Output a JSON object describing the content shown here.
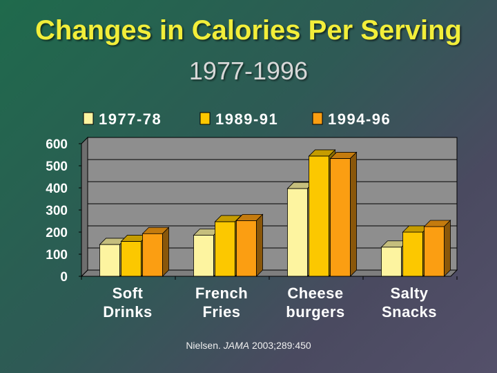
{
  "chart_data": {
    "type": "bar",
    "title": "Changes in Calories Per Serving",
    "subtitle": "1977-1996",
    "categories": [
      [
        "Soft",
        "Drinks"
      ],
      [
        "French",
        "Fries"
      ],
      [
        "Cheese",
        "burgers"
      ],
      [
        "Salty",
        "Snacks"
      ]
    ],
    "series": [
      {
        "name": "1977-78",
        "color": "#fdf4a0",
        "values": [
          144,
          186,
          397,
          132
        ]
      },
      {
        "name": "1989-91",
        "color": "#fcc800",
        "values": [
          158,
          247,
          544,
          200
        ]
      },
      {
        "name": "1994-96",
        "color": "#fb9e12",
        "values": [
          193,
          252,
          533,
          225
        ]
      }
    ],
    "yticks": [
      "0",
      "100",
      "200",
      "300",
      "400",
      "500",
      "600"
    ],
    "ylim": [
      0,
      600
    ],
    "xlabel": "",
    "ylabel": "",
    "grid": true,
    "legend_position": "top"
  },
  "citation": {
    "author": "Nielsen.",
    "journal": "JAMA",
    "ref": "2003;289:450"
  }
}
